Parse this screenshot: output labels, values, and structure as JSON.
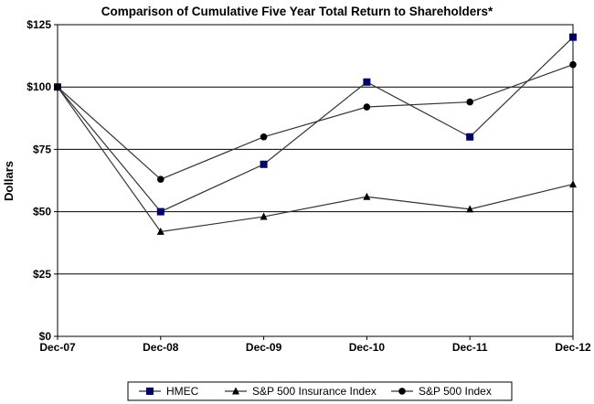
{
  "chart_data": {
    "type": "line",
    "title": "Comparison of Cumulative Five Year Total Return to Shareholders*",
    "xlabel": "",
    "ylabel": "Dollars",
    "categories": [
      "Dec-07",
      "Dec-08",
      "Dec-09",
      "Dec-10",
      "Dec-11",
      "Dec-12"
    ],
    "ylim": [
      0,
      125
    ],
    "yticks": [
      0,
      25,
      50,
      75,
      100,
      125
    ],
    "ytick_labels": [
      "$0",
      "$25",
      "$50",
      "$75",
      "$100",
      "$125"
    ],
    "grid": "horizontal",
    "legend_position": "bottom",
    "series": [
      {
        "name": "HMEC",
        "marker": "square",
        "color": "#000066",
        "values": [
          100,
          50,
          69,
          102,
          80,
          120
        ]
      },
      {
        "name": "S&P 500 Insurance Index",
        "marker": "triangle",
        "color": "#000000",
        "values": [
          100,
          42,
          48,
          56,
          51,
          61
        ]
      },
      {
        "name": "S&P 500 Index",
        "marker": "circle",
        "color": "#000000",
        "values": [
          100,
          63,
          80,
          92,
          94,
          109
        ]
      }
    ],
    "line_color": "#333333"
  }
}
